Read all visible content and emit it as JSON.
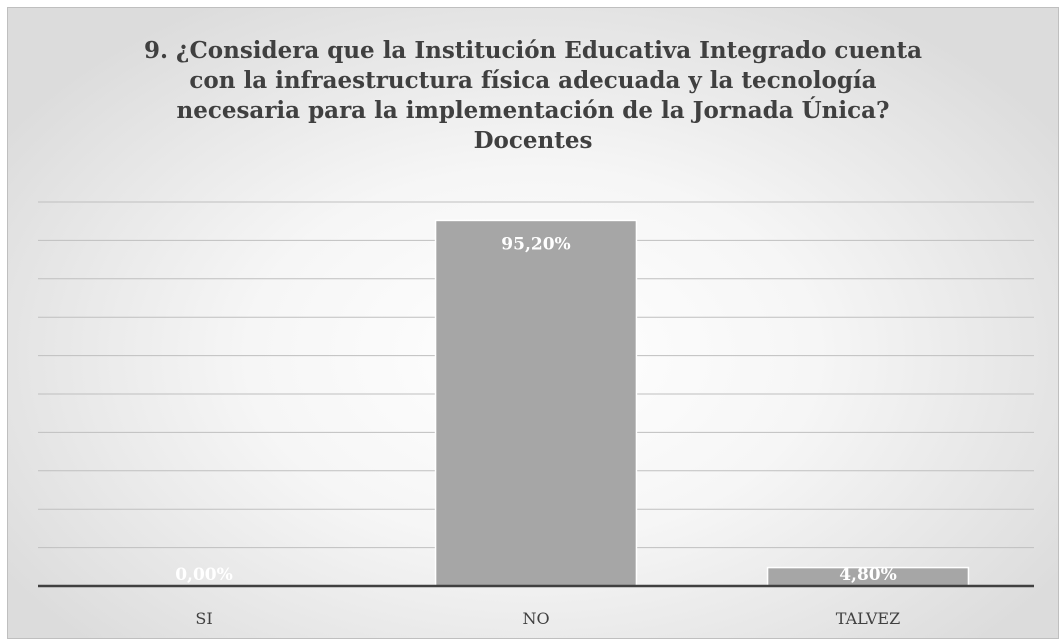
{
  "chart_data": {
    "type": "bar",
    "title_lines": [
      "9. ¿Considera que la Institución Educativa Integrado cuenta",
      "con la infraestructura física adecuada y la tecnología",
      "necesaria para la implementación de la Jornada Única?",
      "Docentes"
    ],
    "categories": [
      "SI",
      "NO",
      "TALVEZ"
    ],
    "values": [
      0.0,
      95.2,
      4.8
    ],
    "data_labels": [
      "0,00%",
      "95,20%",
      "4,80%"
    ],
    "ylim": [
      0,
      100
    ],
    "y_axis_visible": false,
    "grid": true,
    "legend": "none",
    "colors": {
      "bar_fill": "#a6a6a6",
      "bar_stroke": "#ffffff",
      "gridline": "#bfbfbf",
      "axis_line": "#404040",
      "data_label": "#ffffff",
      "text": "#404040"
    }
  }
}
